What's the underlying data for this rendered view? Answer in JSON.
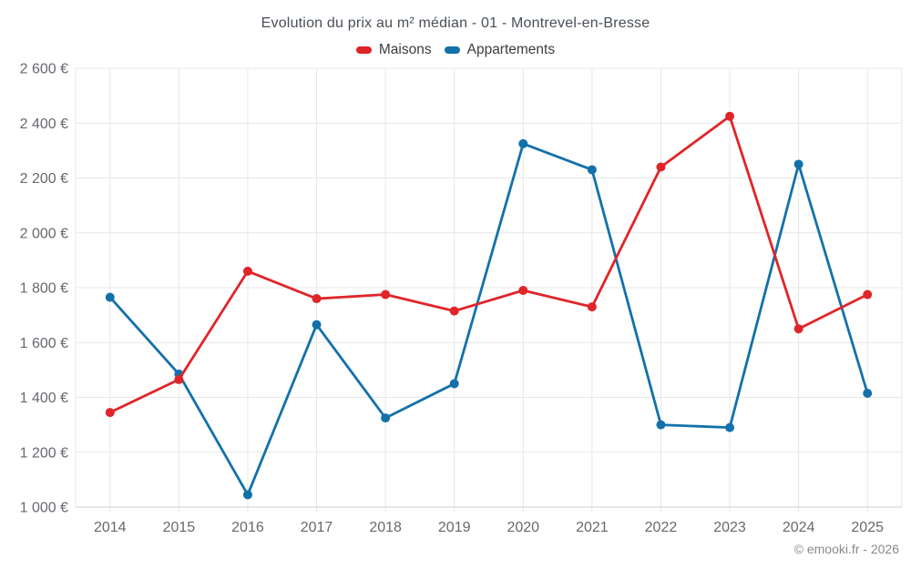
{
  "chart": {
    "title": "Evolution du prix au m² médian - 01 - Montrevel-en-Bresse"
  },
  "legend": {
    "items": [
      {
        "label": "Maisons",
        "color": "#e02529"
      },
      {
        "label": "Appartements",
        "color": "#1371aa"
      }
    ]
  },
  "footer": {
    "credit": "© emooki.fr - 2026"
  },
  "colors": {
    "grid": "#e7e7e7",
    "axis_line": "#cccfd3",
    "tick_label": "#66696e",
    "background": "#ffffff"
  },
  "chart_data": {
    "type": "line",
    "title": "Evolution du prix au m² médian - 01 - Montrevel-en-Bresse",
    "categories": [
      "2014",
      "2015",
      "2016",
      "2017",
      "2018",
      "2019",
      "2020",
      "2021",
      "2022",
      "2023",
      "2024",
      "2025"
    ],
    "series": [
      {
        "name": "Maisons",
        "color": "#e02529",
        "values": [
          1345,
          1465,
          1860,
          1760,
          1775,
          1715,
          1790,
          1730,
          2240,
          2425,
          1650,
          1775
        ]
      },
      {
        "name": "Appartements",
        "color": "#1371aa",
        "values": [
          1765,
          1485,
          1045,
          1665,
          1325,
          1450,
          2325,
          2230,
          1300,
          1290,
          2250,
          1415
        ]
      }
    ],
    "xlabel": "",
    "ylabel": "",
    "ylim": [
      1000,
      2600
    ],
    "ytick_step": 200,
    "ytick_suffix": " €",
    "grid": true,
    "legend_position": "top",
    "marker": "circle"
  }
}
